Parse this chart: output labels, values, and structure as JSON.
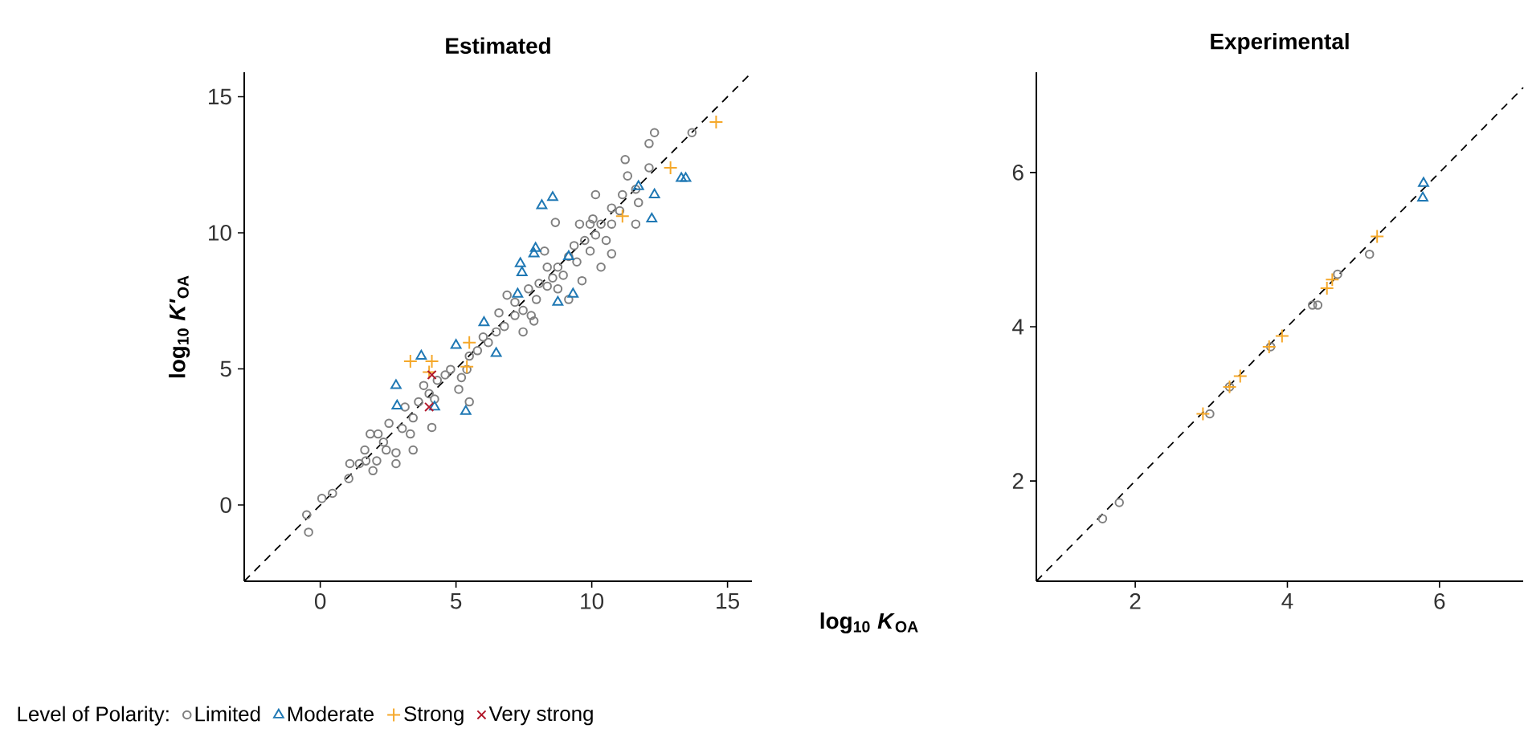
{
  "chart_data": [
    {
      "type": "scatter",
      "title": "Estimated",
      "ylabel": "log$_{10}$ *K'*$_{OA}$",
      "xlabel": "log$_{10}$ *K*$_{OA}$",
      "legend_title": "Level of Polarity:",
      "legend": "bottom",
      "xlim": [
        -2.8,
        15.9
      ],
      "ylim": [
        -2.8,
        15.9
      ],
      "xticks": [
        0,
        5,
        10,
        15
      ],
      "yticks": [
        0,
        5,
        10,
        15
      ],
      "series": [
        {
          "type": "line",
          "line_style": "dashed",
          "marker": "none",
          "color": "#000000",
          "x": [
            -2.8,
            15.9
          ],
          "values": [
            -2.8,
            15.9
          ]
        },
        {
          "name": "Limited",
          "marker": "circle",
          "color": "#808080",
          "x": [
            -0.43,
            -0.5,
            0.06,
            0.45,
            1.05,
            1.09,
            1.44,
            1.68,
            1.94,
            2.08,
            1.84,
            2.13,
            2.33,
            2.43,
            2.79,
            2.79,
            2.53,
            3.02,
            3.32,
            3.42,
            3.12,
            3.62,
            4.01,
            4.11,
            3.81,
            4.31,
            4.6,
            4.8,
            5.1,
            5.49,
            5.4,
            5.49,
            5.79,
            6.19,
            6.48,
            6.78,
            6.88,
            7.17,
            7.17,
            7.47,
            7.77,
            7.67,
            7.96,
            8.06,
            8.36,
            8.56,
            8.75,
            8.66,
            8.95,
            9.15,
            9.45,
            9.64,
            9.35,
            9.74,
            9.94,
            10.14,
            10.34,
            10.73,
            10.53,
            10.34,
            10.04,
            10.14,
            10.73,
            11.13,
            11.32,
            11.23,
            11.62,
            11.72,
            11.62,
            12.11,
            12.31,
            12.11,
            13.69,
            7.47,
            7.87,
            6.58,
            8.26,
            8.75,
            9.15,
            9.94,
            10.73,
            3.42,
            1.64,
            4.21,
            5.2,
            6.0,
            8.36,
            9.55,
            11.03
          ],
          "values": [
            -1.0,
            -0.36,
            0.24,
            0.43,
            0.97,
            1.52,
            1.52,
            1.62,
            1.26,
            1.62,
            2.61,
            2.61,
            2.31,
            2.02,
            1.52,
            1.92,
            3.0,
            2.81,
            2.61,
            3.2,
            3.6,
            3.79,
            4.09,
            2.85,
            4.39,
            4.58,
            4.78,
            4.98,
            4.25,
            3.79,
            4.98,
            5.47,
            5.67,
            5.97,
            6.36,
            6.56,
            7.71,
            6.96,
            7.45,
            7.15,
            6.96,
            7.94,
            7.55,
            8.14,
            8.04,
            8.34,
            8.74,
            10.38,
            8.44,
            9.13,
            8.93,
            8.24,
            9.53,
            9.72,
            9.33,
            9.92,
            8.74,
            9.23,
            9.72,
            10.32,
            10.51,
            11.4,
            10.91,
            11.4,
            12.09,
            12.69,
            11.6,
            11.11,
            10.32,
            12.39,
            13.68,
            13.28,
            13.68,
            6.36,
            6.76,
            7.06,
            9.33,
            7.94,
            7.55,
            10.32,
            10.32,
            2.02,
            2.02,
            3.89,
            4.68,
            6.17,
            8.74,
            10.32,
            10.81
          ]
        },
        {
          "name": "Moderate",
          "marker": "triangle",
          "color": "#1f78b4",
          "x": [
            2.83,
            2.79,
            3.72,
            4.21,
            5.36,
            5.0,
            6.03,
            6.48,
            7.37,
            7.43,
            7.87,
            7.93,
            7.27,
            8.16,
            8.56,
            8.75,
            9.31,
            12.31,
            12.21,
            13.3,
            13.46,
            11.72,
            9.15
          ],
          "values": [
            3.64,
            4.39,
            5.47,
            3.6,
            3.44,
            5.87,
            6.7,
            5.57,
            8.87,
            8.54,
            9.23,
            9.43,
            7.75,
            11.0,
            11.3,
            7.45,
            7.75,
            11.4,
            10.51,
            12.0,
            12.0,
            11.7,
            9.13
          ]
        },
        {
          "name": "Strong",
          "marker": "plus",
          "color": "#f5a82a",
          "x": [
            3.32,
            4.11,
            4.01,
            5.49,
            5.4,
            12.9,
            14.58,
            11.13
          ],
          "values": [
            5.28,
            5.28,
            4.88,
            5.97,
            5.08,
            12.39,
            14.07,
            10.61
          ]
        },
        {
          "name": "Very strong",
          "marker": "cross",
          "color": "#b2182b",
          "x": [
            4.01,
            4.11
          ],
          "values": [
            3.6,
            4.78
          ]
        }
      ]
    },
    {
      "type": "scatter",
      "title": "Experimental",
      "xlim": [
        0.7,
        7.1
      ],
      "ylim": [
        0.7,
        7.3
      ],
      "xticks": [
        2,
        4,
        6
      ],
      "yticks": [
        2,
        4,
        6
      ],
      "series": [
        {
          "type": "line",
          "line_style": "dashed",
          "marker": "none",
          "color": "#000000",
          "x": [
            0.7,
            7.1
          ],
          "values": [
            0.7,
            7.1
          ]
        },
        {
          "marker": "circle",
          "color": "#808080",
          "x": [
            1.57,
            1.79,
            2.98,
            3.78,
            4.33,
            4.4,
            4.66,
            5.08,
            3.24
          ],
          "values": [
            1.51,
            1.72,
            2.87,
            3.74,
            4.28,
            4.28,
            4.68,
            4.94,
            3.22
          ]
        },
        {
          "marker": "triangle",
          "color": "#1f78b4",
          "x": [
            5.79,
            5.78
          ],
          "values": [
            5.86,
            5.67
          ]
        },
        {
          "marker": "plus",
          "color": "#f5a82a",
          "x": [
            2.89,
            3.24,
            3.38,
            3.76,
            3.93,
            4.52,
            4.59,
            5.18
          ],
          "values": [
            2.87,
            3.22,
            3.36,
            3.74,
            3.88,
            4.5,
            4.61,
            5.17
          ]
        }
      ]
    }
  ]
}
